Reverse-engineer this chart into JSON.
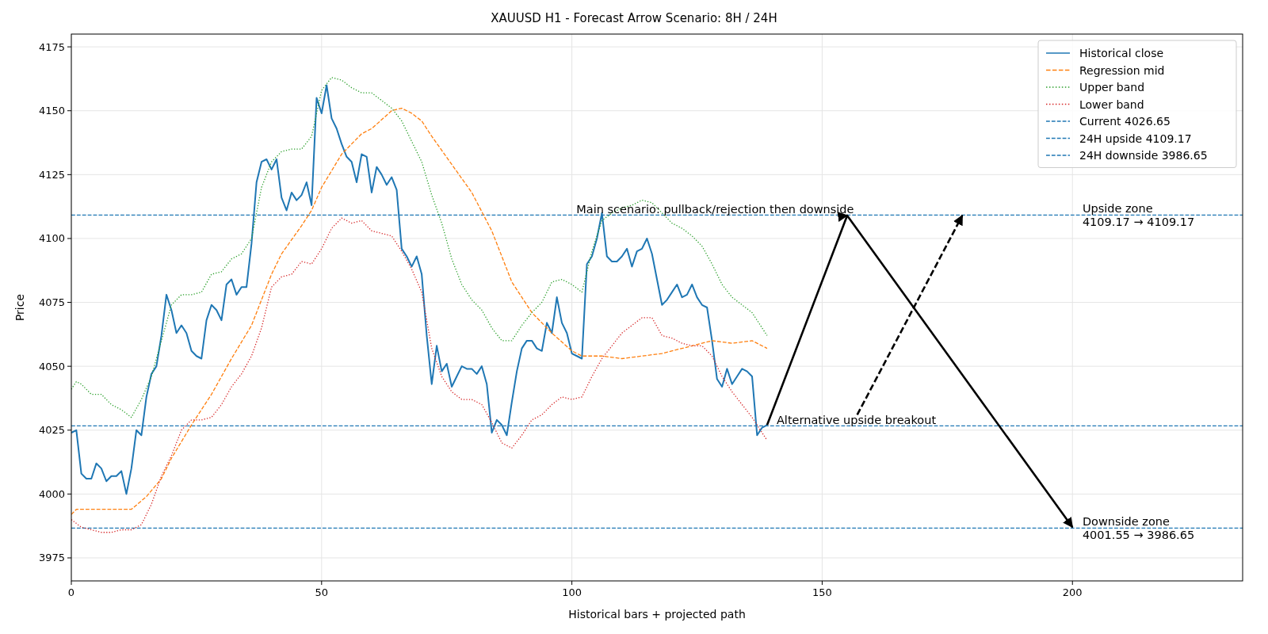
{
  "chart_data": {
    "type": "line",
    "title": "XAUUSD H1 - Forecast Arrow Scenario: 8H / 24H",
    "xlabel": "Historical bars + projected path",
    "ylabel": "Price",
    "x": [
      0,
      1,
      2,
      3,
      4,
      5,
      6,
      7,
      8,
      9,
      10,
      11,
      12,
      13,
      14,
      15,
      16,
      17,
      18,
      19,
      20,
      21,
      22,
      23,
      24,
      25,
      26,
      27,
      28,
      29,
      30,
      31,
      32,
      33,
      34,
      35,
      36,
      37,
      38,
      39,
      40,
      41,
      42,
      43,
      44,
      45,
      46,
      47,
      48,
      49,
      50,
      51,
      52,
      53,
      54,
      55,
      56,
      57,
      58,
      59,
      60,
      61,
      62,
      63,
      64,
      65,
      66,
      67,
      68,
      69,
      70,
      71,
      72,
      73,
      74,
      75,
      76,
      77,
      78,
      79,
      80,
      81,
      82,
      83,
      84,
      85,
      86,
      87,
      88,
      89,
      90,
      91,
      92,
      93,
      94,
      95,
      96,
      97,
      98,
      99,
      100,
      101,
      102,
      103,
      104,
      105,
      106,
      107,
      108,
      109,
      110,
      111,
      112,
      113,
      114,
      115,
      116,
      117,
      118,
      119,
      120,
      121,
      122,
      123,
      124,
      125,
      126,
      127,
      128,
      129,
      130,
      131,
      132,
      133,
      134,
      135,
      136,
      137,
      138,
      139
    ],
    "series": [
      {
        "name": "Historical close",
        "color": "#1f77b4",
        "line_style": "solid",
        "values": [
          4024,
          4025,
          4008,
          4006,
          4006,
          4012,
          4010,
          4005,
          4007,
          4007,
          4009,
          4000,
          4010,
          4025,
          4023,
          4038,
          4047,
          4050,
          4062,
          4078,
          4072,
          4063,
          4066,
          4063,
          4056,
          4054,
          4053,
          4068,
          4074,
          4072,
          4068,
          4082,
          4084,
          4078,
          4081,
          4081,
          4098,
          4122,
          4130,
          4131,
          4127,
          4131,
          4116,
          4111,
          4118,
          4115,
          4117,
          4122,
          4113,
          4155,
          4149,
          4160,
          4147,
          4143,
          4137,
          4132,
          4130,
          4122,
          4133,
          4132,
          4118,
          4128,
          4125,
          4121,
          4124,
          4119,
          4096,
          4093,
          4089,
          4093,
          4086,
          4062,
          4043,
          4058,
          4048,
          4051,
          4042,
          4046,
          4050,
          4049,
          4049,
          4047,
          4050,
          4043,
          4024,
          4029,
          4027,
          4023,
          4036,
          4048,
          4057,
          4060,
          4060,
          4057,
          4056,
          4067,
          4063,
          4077,
          4067,
          4063,
          4055,
          4054,
          4053,
          4090,
          4093,
          4100,
          4110,
          4093,
          4091,
          4091,
          4093,
          4096,
          4089,
          4095,
          4096,
          4100,
          4094,
          4084,
          4074,
          4076,
          4079,
          4082,
          4077,
          4078,
          4082,
          4077,
          4074,
          4073,
          4060,
          4045,
          4042,
          4049,
          4043,
          4046,
          4049,
          4048,
          4046,
          4023,
          4026,
          4027
        ]
      },
      {
        "name": "Regression mid",
        "color": "#ff7f0e",
        "line_style": "dashed",
        "x": [
          0,
          1,
          5,
          11,
          12,
          15,
          18,
          20,
          24,
          28,
          32,
          36,
          40,
          42,
          46,
          48,
          50,
          54,
          58,
          60,
          64,
          66,
          68,
          70,
          72,
          76,
          80,
          84,
          88,
          92,
          96,
          100,
          102,
          106,
          110,
          114,
          118,
          122,
          126,
          128,
          132,
          136,
          139
        ],
        "values": [
          3992,
          3994,
          3994,
          3994,
          3994,
          3999,
          4006,
          4014,
          4027,
          4039,
          4053,
          4066,
          4086,
          4094,
          4105,
          4111,
          4120,
          4133,
          4141,
          4143,
          4150,
          4151,
          4149,
          4146,
          4140,
          4129,
          4118,
          4103,
          4083,
          4071,
          4063,
          4056,
          4054,
          4054,
          4053,
          4054,
          4055,
          4057,
          4059,
          4060,
          4059,
          4060,
          4057
        ]
      },
      {
        "name": "Upper band",
        "color": "#2ca02c",
        "line_style": "dotted",
        "x": [
          0,
          1,
          2,
          4,
          6,
          8,
          10,
          12,
          14,
          16,
          18,
          20,
          22,
          24,
          26,
          28,
          30,
          32,
          34,
          36,
          38,
          40,
          42,
          44,
          46,
          48,
          50,
          52,
          54,
          56,
          58,
          60,
          62,
          64,
          66,
          68,
          70,
          72,
          74,
          76,
          78,
          80,
          82,
          84,
          86,
          88,
          90,
          92,
          94,
          96,
          98,
          100,
          102,
          104,
          106,
          108,
          110,
          112,
          114,
          116,
          118,
          120,
          122,
          124,
          126,
          128,
          130,
          132,
          134,
          136,
          138,
          139
        ],
        "values": [
          4041,
          4044,
          4043,
          4039,
          4039,
          4035,
          4033,
          4030,
          4037,
          4046,
          4060,
          4074,
          4078,
          4078,
          4079,
          4086,
          4087,
          4092,
          4094,
          4100,
          4120,
          4130,
          4134,
          4135,
          4135,
          4140,
          4158,
          4163,
          4162,
          4159,
          4157,
          4157,
          4154,
          4151,
          4146,
          4138,
          4130,
          4117,
          4106,
          4092,
          4082,
          4076,
          4072,
          4065,
          4060,
          4060,
          4066,
          4071,
          4075,
          4083,
          4084,
          4082,
          4079,
          4095,
          4107,
          4110,
          4112,
          4113,
          4115,
          4114,
          4110,
          4106,
          4104,
          4101,
          4097,
          4090,
          4082,
          4077,
          4074,
          4071,
          4065,
          4062
        ]
      },
      {
        "name": "Lower band",
        "color": "#d62728",
        "line_style": "dotted",
        "x": [
          0,
          2,
          4,
          6,
          8,
          10,
          12,
          14,
          16,
          18,
          20,
          22,
          24,
          26,
          28,
          30,
          32,
          34,
          36,
          38,
          40,
          42,
          44,
          46,
          48,
          50,
          52,
          54,
          56,
          58,
          60,
          62,
          64,
          66,
          68,
          70,
          72,
          74,
          76,
          78,
          80,
          82,
          84,
          86,
          88,
          90,
          92,
          94,
          96,
          98,
          100,
          102,
          104,
          106,
          108,
          110,
          112,
          114,
          116,
          118,
          120,
          122,
          124,
          126,
          128,
          130,
          132,
          134,
          136,
          138,
          139
        ],
        "values": [
          3990,
          3987,
          3986,
          3985,
          3985,
          3986,
          3986,
          3988,
          3996,
          4007,
          4015,
          4025,
          4029,
          4029,
          4030,
          4035,
          4042,
          4047,
          4054,
          4065,
          4081,
          4085,
          4086,
          4091,
          4090,
          4096,
          4104,
          4108,
          4106,
          4107,
          4103,
          4102,
          4101,
          4095,
          4088,
          4079,
          4057,
          4046,
          4040,
          4037,
          4037,
          4035,
          4028,
          4020,
          4018,
          4023,
          4029,
          4031,
          4035,
          4038,
          4037,
          4038,
          4046,
          4053,
          4058,
          4063,
          4066,
          4069,
          4069,
          4062,
          4061,
          4059,
          4058,
          4058,
          4054,
          4046,
          4040,
          4035,
          4030,
          4024,
          4021
        ]
      },
      {
        "color": "#000000",
        "line_style": "solid",
        "x": [
          139,
          155,
          200
        ],
        "values": [
          4027,
          4109,
          3987
        ]
      },
      {
        "color": "#000000",
        "line_style": "dashed",
        "x": [
          157,
          178
        ],
        "values": [
          4031,
          4109
        ]
      }
    ],
    "ref_lines": [
      {
        "axis": "y",
        "value": 4026.65,
        "label": "Current 4026.65",
        "color": "#1f77b4",
        "line_style": "dashed"
      },
      {
        "axis": "y",
        "value": 4109.17,
        "label": "24H upside 4109.17",
        "color": "#1f77b4",
        "line_style": "dashed"
      },
      {
        "axis": "y",
        "value": 3986.65,
        "label": "24H downside 3986.65",
        "color": "#1f77b4",
        "line_style": "dashed"
      }
    ],
    "annotations": [
      {
        "text": "Main scenario: pullback/rejection then downside",
        "x": 99,
        "y": 4109.17
      },
      {
        "text": "Alternative upside breakout",
        "x": 139,
        "y": 4026.65
      },
      {
        "text": "Upside zone\n4109.17 → 4109.17",
        "x": 202,
        "y": 4109.17
      },
      {
        "text": "Downside zone\n4001.55 → 3986.65",
        "x": 202,
        "y": 3986.65
      }
    ],
    "xlim": [
      0,
      234
    ],
    "xticks": [
      0,
      50,
      100,
      150,
      200
    ],
    "ylim": [
      3966,
      4180
    ],
    "yticks": [
      3975,
      4000,
      4025,
      4050,
      4075,
      4100,
      4125,
      4150,
      4175
    ],
    "grid": true,
    "legend": "top right"
  }
}
